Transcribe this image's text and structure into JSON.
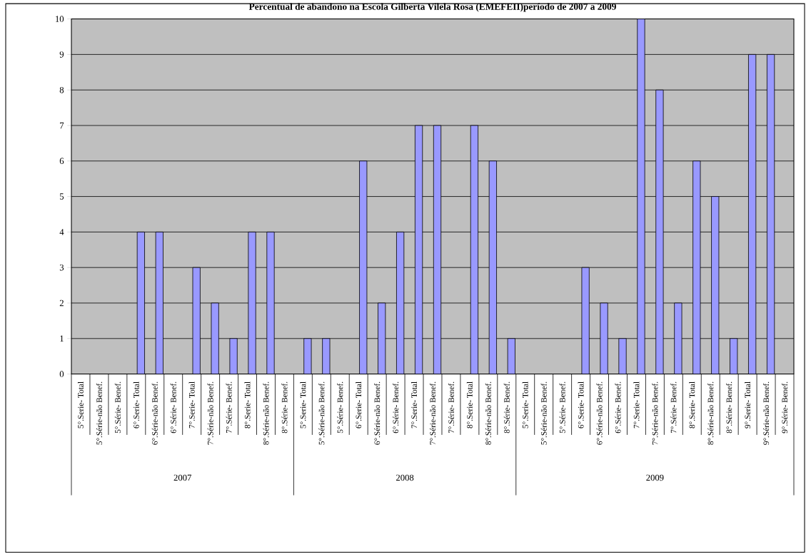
{
  "chart_data": {
    "type": "bar",
    "title": "Percentual de abandono na Escola Gilberta Vilela Rosa (EMEFEII)período de 2007 a 2009",
    "categories": [
      "5°.Serie- Total",
      "5°.Série-não Benef.",
      "5°.Série- Benef.",
      "6°.Serie- Total",
      "6°.Série-não Benef.",
      "6°.Série- Benef.",
      "7°.Serie- Total",
      "7°.Série-não Benef.",
      "7°.Série- Benef.",
      "8°.Serie- Total",
      "8°.Série-não Benef.",
      "8°.Série- Benef.",
      "5°.Serie- Total",
      "5°.Série-não Benef.",
      "5°.Série- Benef.",
      "6°.Serie- Total",
      "6°.Série-não Benef.",
      "6°.Série- Benef.",
      "7°.Serie- Total",
      "7°.Série-não Benef.",
      "7°.Série- Benef.",
      "8°.Serie- Total",
      "8°.Série-não Benef.",
      "8°.Série- Benef.",
      "5°.Serie- Total",
      "5°.Série-não Benef.",
      "5°.Série- Benef.",
      "6°.Serie- Total",
      "6°.Série-não Benef.",
      "6°.Série- Benef.",
      "7°.Serie- Total",
      "7°.Série-não Benef.",
      "7°.Série- Benef.",
      "8°.Serie- Total",
      "8°.Série-não Benef.",
      "8°.Série- Benef.",
      "9°.Serie- Total",
      "9°.Série-não Benef.",
      "9°.Série- Benef."
    ],
    "values": [
      0,
      0,
      0,
      4,
      4,
      0,
      3,
      2,
      1,
      4,
      4,
      0,
      1,
      1,
      0,
      6,
      2,
      4,
      7,
      7,
      0,
      7,
      6,
      1,
      0,
      0,
      0,
      3,
      2,
      1,
      10,
      8,
      2,
      6,
      5,
      1,
      9,
      9,
      0
    ],
    "color": "#9999ff",
    "ylim": [
      0,
      10
    ],
    "yticks": [
      0,
      1,
      2,
      3,
      4,
      5,
      6,
      7,
      8,
      9,
      10
    ],
    "grid": "y",
    "annotations": [
      "2007",
      "2008",
      "2009"
    ]
  }
}
